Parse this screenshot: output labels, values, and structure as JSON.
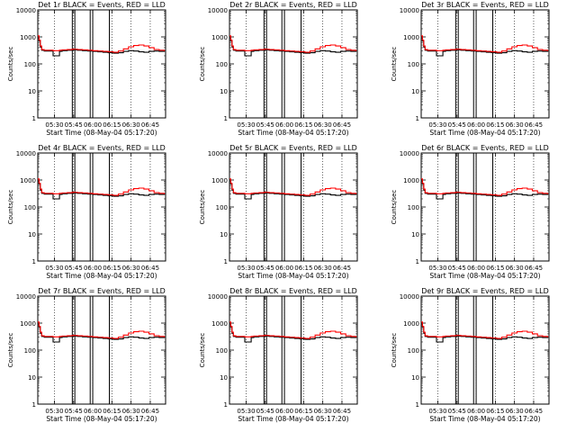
{
  "figure": {
    "xlabel": "Start Time (08-May-04 05:17:20)",
    "ylabel": "Counts/sec",
    "series_colors": {
      "events": "#000000",
      "lld": "#ff0000"
    }
  },
  "shared": {
    "type": "line",
    "y_scale": "log",
    "ylim": [
      1,
      10000
    ],
    "y_ticks": [
      "1",
      "10",
      "100",
      "1000",
      "10000"
    ],
    "xlim": [
      "05:17",
      "06:57"
    ],
    "x_ticks": [
      "05:30",
      "05:45",
      "06:00",
      "06:15",
      "06:30",
      "06:45"
    ],
    "dotted_time_lines": [
      "05:30",
      "05:45",
      "06:00",
      "06:15",
      "06:30",
      "06:45"
    ],
    "solid_time_lines": [
      "05:44",
      "05:46",
      "05:58",
      "06:00",
      "06:13"
    ],
    "x": [
      "05:17",
      "05:18",
      "05:19",
      "05:20",
      "05:22",
      "05:24",
      "05:26",
      "05:28",
      "05:29",
      "05:31",
      "05:32",
      "05:34",
      "05:36",
      "05:40",
      "05:44",
      "05:48",
      "05:52",
      "05:56",
      "06:00",
      "06:04",
      "06:08",
      "06:12",
      "06:16",
      "06:20",
      "06:24",
      "06:28",
      "06:32",
      "06:36",
      "06:40",
      "06:44",
      "06:48",
      "06:52",
      "06:56"
    ],
    "series": [
      {
        "key": "events",
        "values": [
          1000,
          700,
          420,
          320,
          300,
          300,
          300,
          300,
          200,
          200,
          200,
          290,
          310,
          320,
          330,
          320,
          310,
          300,
          290,
          280,
          270,
          260,
          250,
          260,
          290,
          310,
          300,
          280,
          270,
          290,
          300,
          290,
          280
        ]
      },
      {
        "key": "lld",
        "values": [
          1100,
          760,
          460,
          340,
          320,
          320,
          320,
          320,
          310,
          310,
          310,
          320,
          330,
          340,
          350,
          340,
          330,
          320,
          310,
          300,
          290,
          280,
          270,
          300,
          360,
          430,
          480,
          500,
          460,
          400,
          340,
          320,
          300
        ]
      }
    ]
  },
  "chart_data": [
    {
      "type": "line",
      "title": "Det 1r BLACK = Events, RED = LLD"
    },
    {
      "type": "line",
      "title": "Det 2r BLACK = Events, RED = LLD"
    },
    {
      "type": "line",
      "title": "Det 3r BLACK = Events, RED = LLD"
    },
    {
      "type": "line",
      "title": "Det 4r BLACK = Events, RED = LLD"
    },
    {
      "type": "line",
      "title": "Det 5r BLACK = Events, RED = LLD"
    },
    {
      "type": "line",
      "title": "Det 6r BLACK = Events, RED = LLD"
    },
    {
      "type": "line",
      "title": "Det 7r BLACK = Events, RED = LLD"
    },
    {
      "type": "line",
      "title": "Det 8r BLACK = Events, RED = LLD"
    },
    {
      "type": "line",
      "title": "Det 9r BLACK = Events, RED = LLD"
    }
  ]
}
